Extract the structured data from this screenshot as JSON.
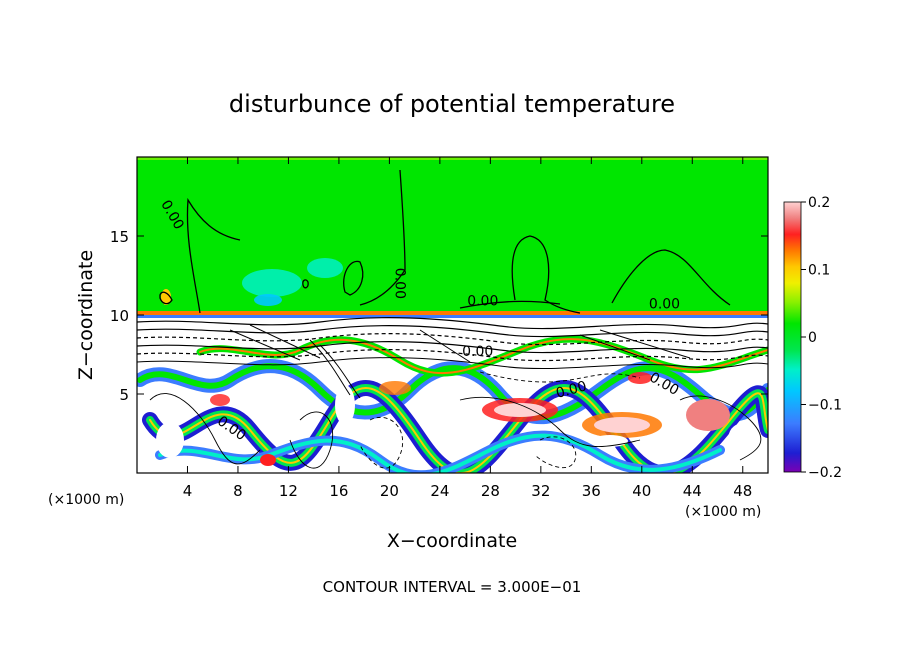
{
  "chart_data": {
    "type": "heatmap",
    "title": "disturbunce of potential temperature",
    "xlabel": "X−coordinate",
    "ylabel": "Z−coordinate",
    "x_unit_left": "(×1000 m)",
    "x_unit_right": "(×1000 m)",
    "footer": "CONTOUR INTERVAL = 3.000E−01",
    "xlim": [
      0,
      50
    ],
    "ylim": [
      0,
      20
    ],
    "x_ticks": [
      4,
      8,
      12,
      16,
      20,
      24,
      28,
      32,
      36,
      40,
      44,
      48
    ],
    "x_tick_labels": [
      "4",
      "8",
      "12",
      "16",
      "20",
      "24",
      "28",
      "32",
      "36",
      "40",
      "44",
      "48"
    ],
    "y_ticks": [
      5,
      10,
      15
    ],
    "y_tick_labels": [
      "5",
      "10",
      "15"
    ],
    "colorbar": {
      "range": [
        -0.2,
        0.2
      ],
      "tick_values": [
        0.2,
        0.1,
        0,
        -0.1,
        -0.2
      ],
      "tick_labels": [
        "0.2",
        "0.1",
        "0",
        "−0.1",
        "−0.2"
      ],
      "colors": [
        "#7a00b4",
        "#1e1ed2",
        "#3c7cff",
        "#00c8ff",
        "#00f0c8",
        "#00e650",
        "#00e600",
        "#8cf000",
        "#f0f000",
        "#ffc800",
        "#ff7800",
        "#ff2020",
        "#f08080",
        "#ffd2d2"
      ]
    },
    "contour_labels": [
      {
        "text": "0.00",
        "x": 2.5,
        "z": 16.2,
        "rotate": 60
      },
      {
        "text": "0.00",
        "x": 20.5,
        "z": 12.0,
        "rotate": 90
      },
      {
        "text": "0.00",
        "x": 27.4,
        "z": 10.6,
        "rotate": 0
      },
      {
        "text": "0.00",
        "x": 41.8,
        "z": 10.4,
        "rotate": 0
      },
      {
        "text": "0.00",
        "x": 27.0,
        "z": 7.4,
        "rotate": 0
      },
      {
        "text": "0.00",
        "x": 34.5,
        "z": 5.0,
        "rotate": -15
      },
      {
        "text": "0.00",
        "x": 41.6,
        "z": 5.4,
        "rotate": 30
      },
      {
        "text": "0.00",
        "x": 7.3,
        "z": 2.6,
        "rotate": 35
      }
    ]
  }
}
